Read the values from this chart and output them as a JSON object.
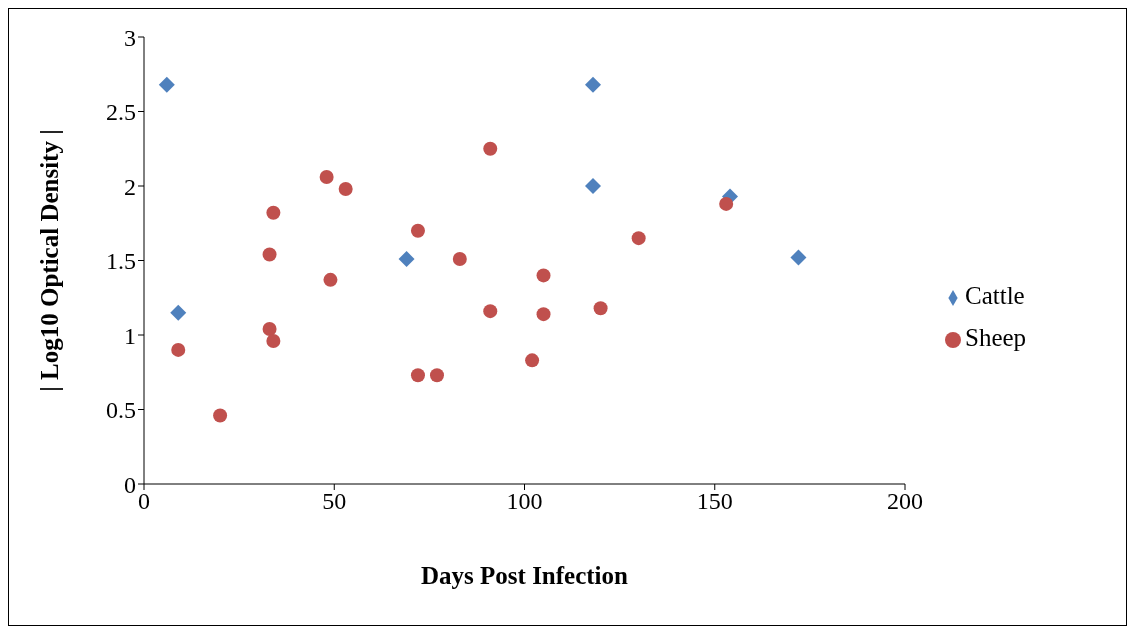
{
  "chart_data": {
    "type": "scatter",
    "xlabel": "Days Post Infection",
    "ylabel": "| Log10 Optical Density |",
    "xlim": [
      0,
      200
    ],
    "xticks": [
      0,
      50,
      100,
      150,
      200
    ],
    "ylim": [
      0,
      3
    ],
    "yticks": [
      0,
      0.5,
      1,
      1.5,
      2,
      2.5,
      3
    ],
    "grid": false,
    "legend": "right",
    "series": [
      {
        "name": "Cattle",
        "color": "#4f81bd",
        "marker": "diamond",
        "x": [
          6,
          9,
          69,
          118,
          118,
          154,
          172
        ],
        "values": [
          2.68,
          1.15,
          1.51,
          2.68,
          2.0,
          1.93,
          1.52
        ]
      },
      {
        "name": "Sheep",
        "color": "#c0504d",
        "marker": "circle",
        "x": [
          9,
          20,
          33,
          34,
          33,
          34,
          48,
          49,
          53,
          72,
          72,
          77,
          83,
          91,
          91,
          102,
          105,
          105,
          120,
          130,
          153
        ],
        "values": [
          0.9,
          0.46,
          1.54,
          1.82,
          1.04,
          0.96,
          2.06,
          1.37,
          1.98,
          1.7,
          0.73,
          0.73,
          1.51,
          2.25,
          1.16,
          0.83,
          1.4,
          1.14,
          1.18,
          1.65,
          1.88
        ]
      }
    ]
  }
}
